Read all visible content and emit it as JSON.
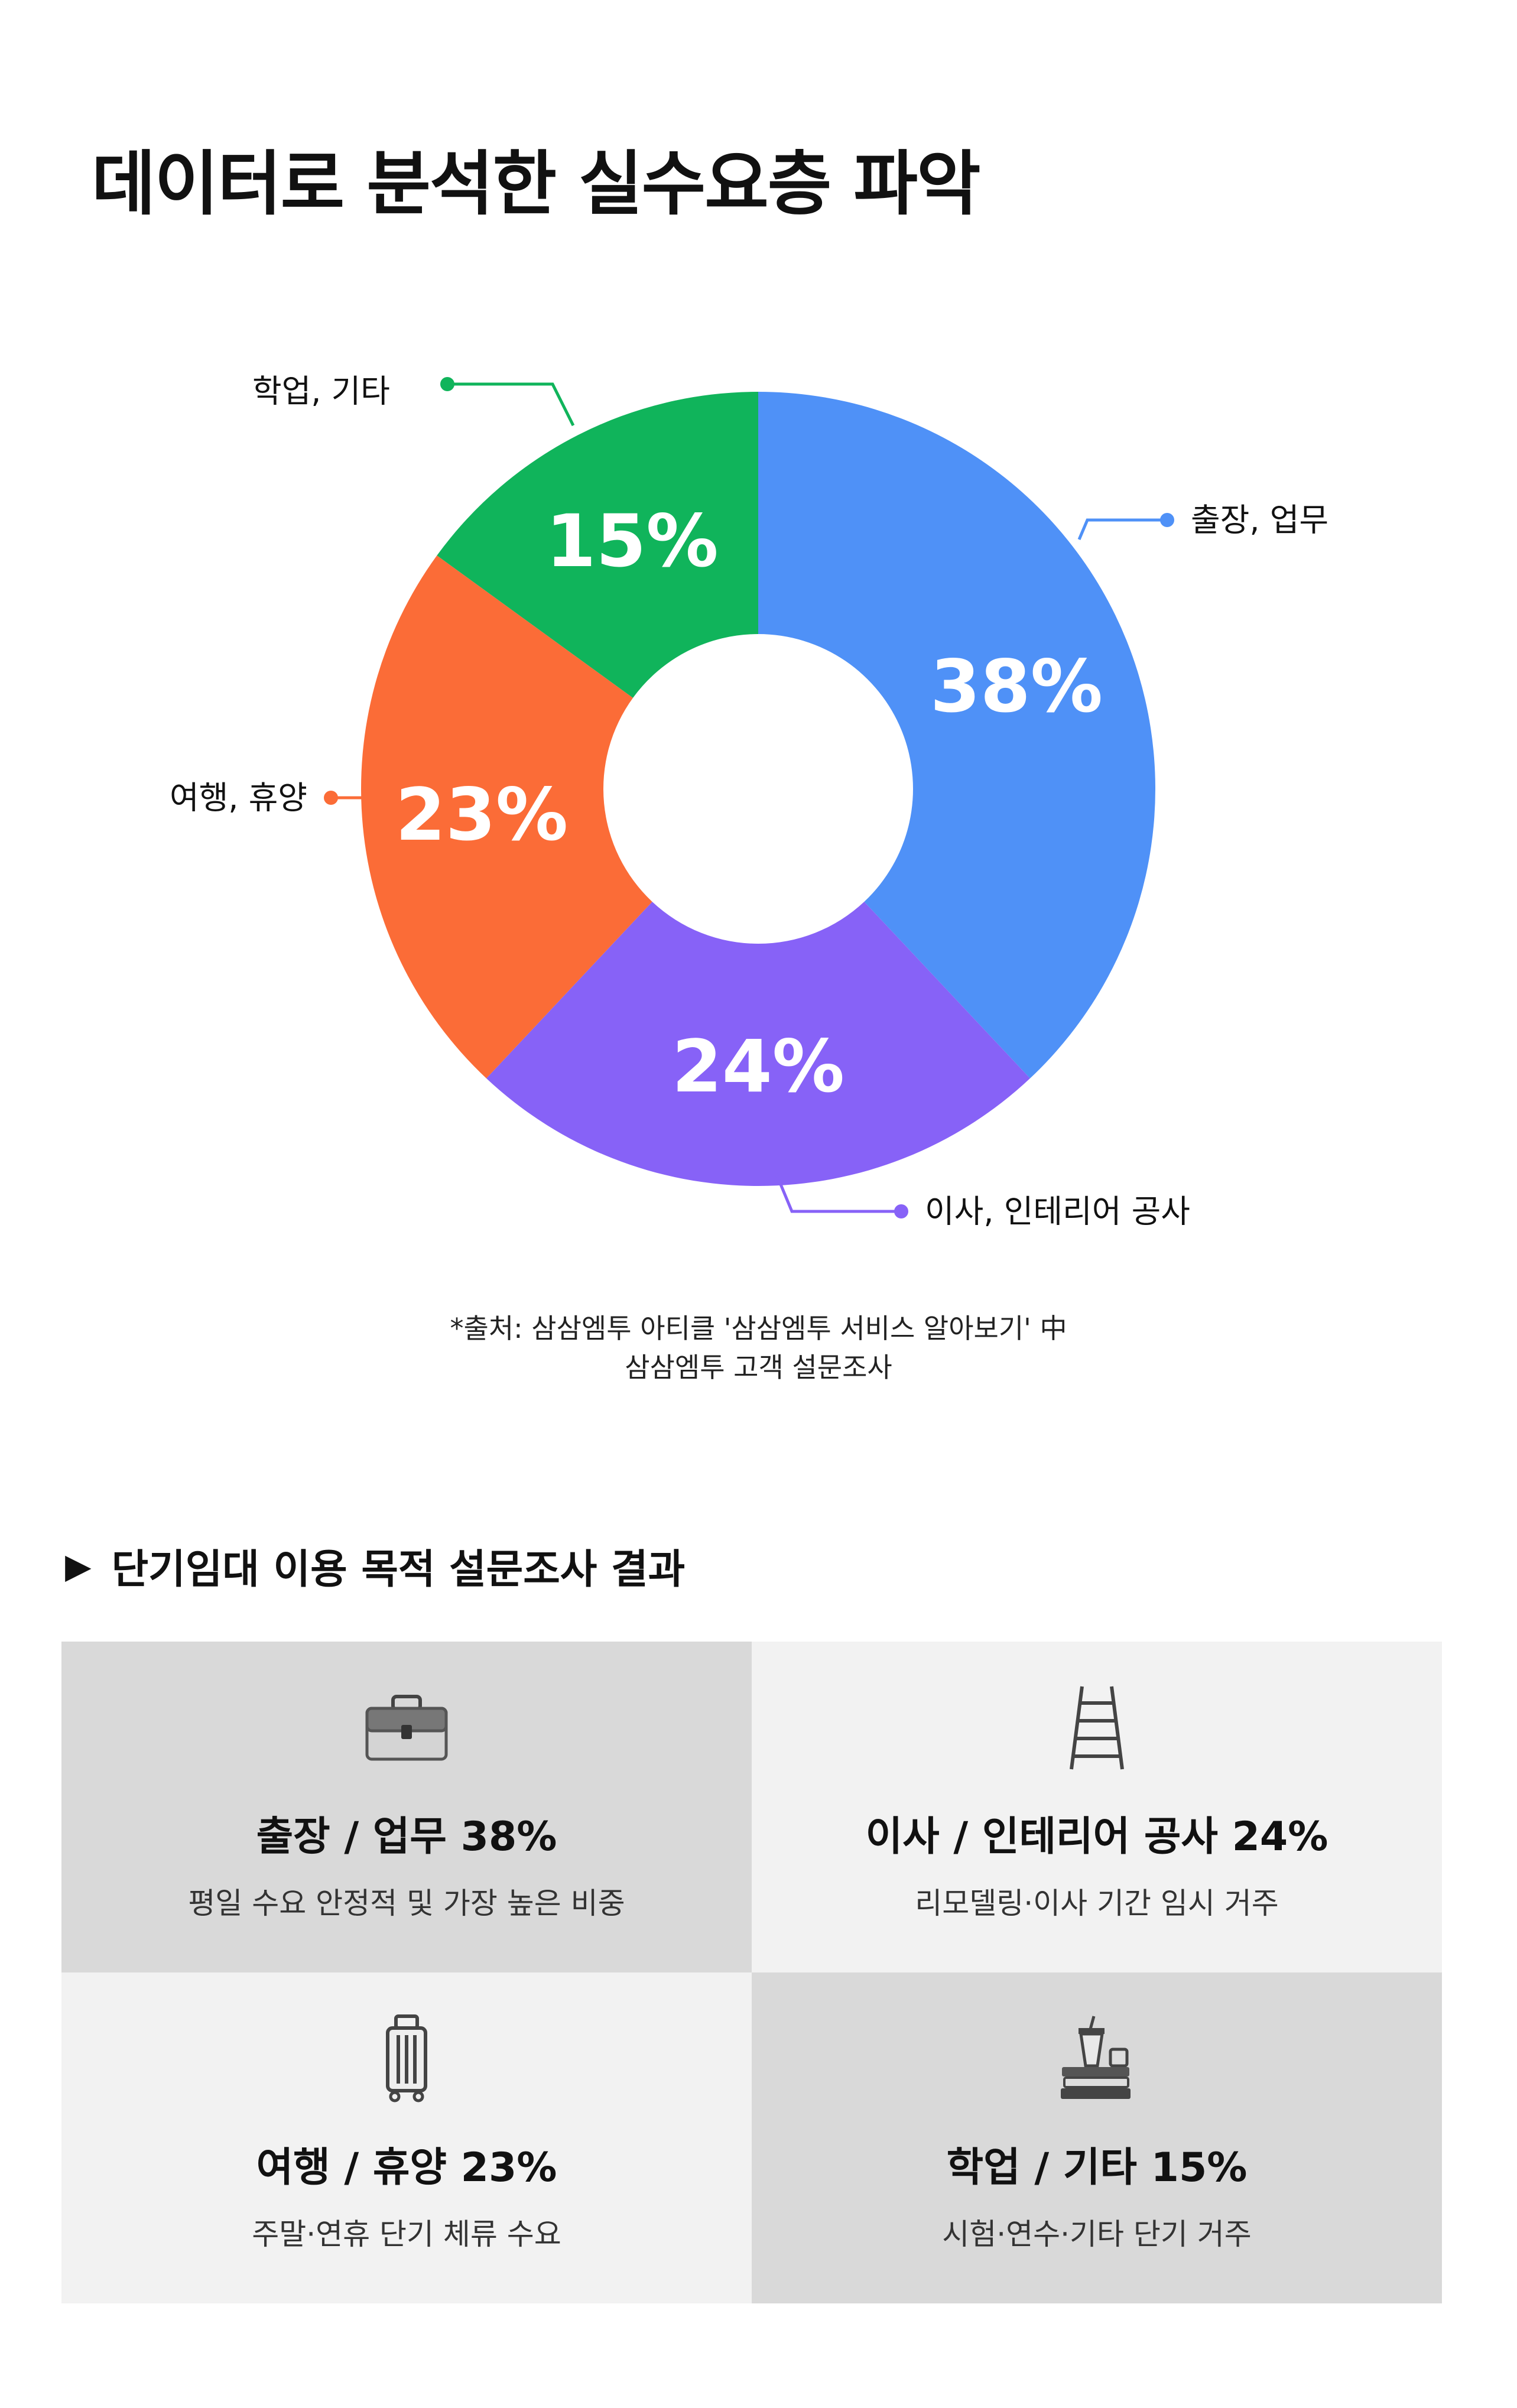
{
  "title": "데이터로 분석한 실수요층 파악",
  "chart_data": {
    "type": "pie",
    "slices": [
      {
        "label": "출장, 업무",
        "value": 38,
        "display": "38%",
        "color": "#4f91f7"
      },
      {
        "label": "이사, 인테리어 공사",
        "value": 24,
        "display": "24%",
        "color": "#8762f7"
      },
      {
        "label": "여행, 휴양",
        "value": 23,
        "display": "23%",
        "color": "#fb6c37"
      },
      {
        "label": "학업, 기타",
        "value": 15,
        "display": "15%",
        "color": "#10b45b"
      }
    ],
    "legend": "callouts"
  },
  "source": {
    "line1": "*출처: 삼삼엠투 아티클 '삼삼엠투 서비스 알아보기' 中",
    "line2": "삼삼엠투 고객 설문조사"
  },
  "section": {
    "marker": "▶",
    "title": "단기임대 이용 목적 설문조사 결과"
  },
  "cards": [
    {
      "icon": "briefcase-icon",
      "title": "출장 / 업무 38%",
      "desc": "평일 수요 안정적 및 가장 높은 비중"
    },
    {
      "icon": "ladder-icon",
      "title": "이사 / 인테리어 공사 24%",
      "desc": "리모델링·이사 기간 임시 거주"
    },
    {
      "icon": "suitcase-icon",
      "title": "여행 / 휴양 23%",
      "desc": "주말·연휴 단기 체류 수요"
    },
    {
      "icon": "books-coffee-icon",
      "title": "학업 / 기타 15%",
      "desc": "시험·연수·기타 단기 거주"
    }
  ]
}
